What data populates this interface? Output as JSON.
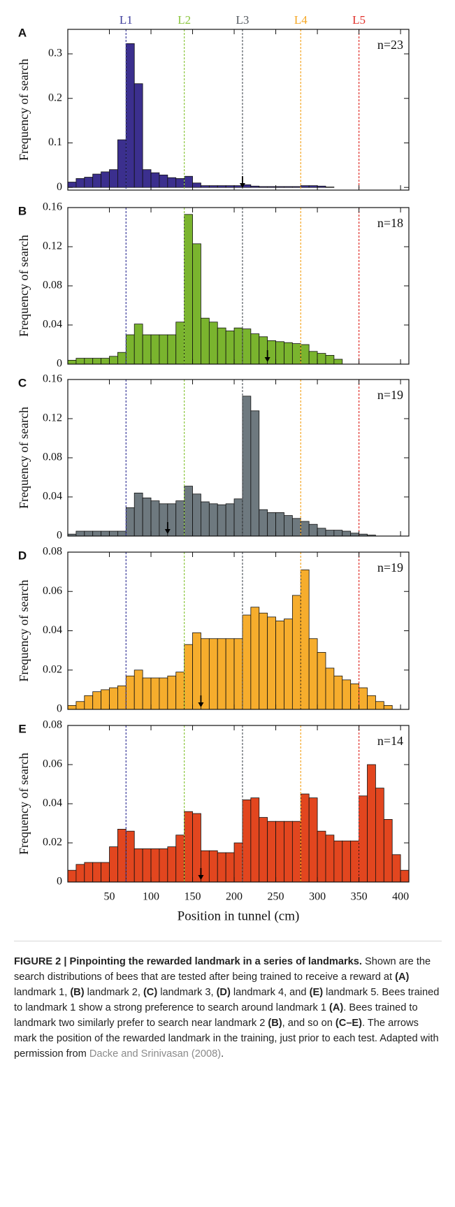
{
  "chart_data": [
    {
      "type": "histogram",
      "panel": "A",
      "n_label": "n=23",
      "color": "#3b2f8e",
      "ylabel": "Frequency of search",
      "bins": [
        0,
        10,
        20,
        30,
        40,
        50,
        60,
        70,
        80,
        90,
        100,
        110,
        120,
        130,
        140,
        150,
        160,
        170,
        180,
        190,
        200,
        210,
        220,
        230,
        240,
        250,
        260,
        270,
        280,
        290,
        300,
        310,
        320,
        330,
        340,
        350,
        360,
        370,
        380,
        390,
        400,
        410
      ],
      "values": [
        0.012,
        0.02,
        0.023,
        0.03,
        0.035,
        0.04,
        0.107,
        0.323,
        0.233,
        0.04,
        0.033,
        0.028,
        0.022,
        0.02,
        0.025,
        0.01,
        0.004,
        0.004,
        0.004,
        0.004,
        0.004,
        0.006,
        0.003,
        0.002,
        0.002,
        0.002,
        0.002,
        0.002,
        0.004,
        0.004,
        0.003,
        0.001,
        0,
        0,
        0,
        0,
        0,
        0,
        0,
        0,
        0
      ],
      "xlim": [
        0,
        410
      ],
      "ylim": [
        -0.006,
        0.355
      ],
      "yticks": [
        0,
        0.1,
        0.2,
        0.3
      ],
      "arrow": 210,
      "landmarks": [
        {
          "label": "L1",
          "x": 70,
          "color": "#3d3d9c"
        },
        {
          "label": "L2",
          "x": 140,
          "color": "#8cc63f"
        },
        {
          "label": "L3",
          "x": 210,
          "color": "#555a60"
        },
        {
          "label": "L4",
          "x": 280,
          "color": "#f5a623"
        },
        {
          "label": "L5",
          "x": 350,
          "color": "#e0302a"
        }
      ]
    },
    {
      "type": "histogram",
      "panel": "B",
      "n_label": "n=18",
      "color": "#7ab42e",
      "ylabel": "Frequency of search",
      "bins": [
        0,
        10,
        20,
        30,
        40,
        50,
        60,
        70,
        80,
        90,
        100,
        110,
        120,
        130,
        140,
        150,
        160,
        170,
        180,
        190,
        200,
        210,
        220,
        230,
        240,
        250,
        260,
        270,
        280,
        290,
        300,
        310,
        320,
        330,
        340,
        350,
        360,
        370,
        380,
        390,
        400,
        410
      ],
      "values": [
        0.004,
        0.006,
        0.006,
        0.006,
        0.006,
        0.008,
        0.012,
        0.03,
        0.041,
        0.03,
        0.03,
        0.03,
        0.03,
        0.043,
        0.153,
        0.123,
        0.047,
        0.043,
        0.037,
        0.034,
        0.037,
        0.036,
        0.031,
        0.028,
        0.024,
        0.023,
        0.022,
        0.021,
        0.02,
        0.013,
        0.011,
        0.009,
        0.005,
        0,
        0,
        0,
        0,
        0,
        0,
        0,
        0
      ],
      "xlim": [
        0,
        410
      ],
      "ylim": [
        0,
        0.16
      ],
      "yticks": [
        0,
        0.04,
        0.08,
        0.12,
        0.16
      ],
      "arrow": 240
    },
    {
      "type": "histogram",
      "panel": "C",
      "n_label": "n=19",
      "color": "#6e797f",
      "ylabel": "Frequency of search",
      "bins": [
        0,
        10,
        20,
        30,
        40,
        50,
        60,
        70,
        80,
        90,
        100,
        110,
        120,
        130,
        140,
        150,
        160,
        170,
        180,
        190,
        200,
        210,
        220,
        230,
        240,
        250,
        260,
        270,
        280,
        290,
        300,
        310,
        320,
        330,
        340,
        350,
        360,
        370,
        380,
        390,
        400,
        410
      ],
      "values": [
        0.002,
        0.005,
        0.005,
        0.005,
        0.005,
        0.005,
        0.005,
        0.029,
        0.044,
        0.039,
        0.036,
        0.033,
        0.033,
        0.036,
        0.051,
        0.043,
        0.035,
        0.033,
        0.032,
        0.033,
        0.038,
        0.143,
        0.128,
        0.027,
        0.024,
        0.024,
        0.021,
        0.018,
        0.015,
        0.012,
        0.008,
        0.006,
        0.006,
        0.005,
        0.003,
        0.002,
        0.001,
        0,
        0,
        0,
        0
      ],
      "xlim": [
        0,
        410
      ],
      "ylim": [
        0,
        0.16
      ],
      "yticks": [
        0,
        0.04,
        0.08,
        0.12,
        0.16
      ],
      "arrow": 120
    },
    {
      "type": "histogram",
      "panel": "D",
      "n_label": "n=19",
      "color": "#f6ad2d",
      "ylabel": "Frequency of search",
      "bins": [
        0,
        10,
        20,
        30,
        40,
        50,
        60,
        70,
        80,
        90,
        100,
        110,
        120,
        130,
        140,
        150,
        160,
        170,
        180,
        190,
        200,
        210,
        220,
        230,
        240,
        250,
        260,
        270,
        280,
        290,
        300,
        310,
        320,
        330,
        340,
        350,
        360,
        370,
        380,
        390,
        400,
        410
      ],
      "values": [
        0.002,
        0.004,
        0.007,
        0.009,
        0.01,
        0.011,
        0.012,
        0.017,
        0.02,
        0.016,
        0.016,
        0.016,
        0.017,
        0.019,
        0.033,
        0.039,
        0.036,
        0.036,
        0.036,
        0.036,
        0.036,
        0.048,
        0.052,
        0.049,
        0.047,
        0.045,
        0.046,
        0.058,
        0.071,
        0.036,
        0.029,
        0.021,
        0.017,
        0.015,
        0.013,
        0.011,
        0.007,
        0.004,
        0.002,
        0,
        0
      ],
      "xlim": [
        0,
        410
      ],
      "ylim": [
        0,
        0.08
      ],
      "yticks": [
        0,
        0.02,
        0.04,
        0.06,
        0.08
      ],
      "arrow": 160
    },
    {
      "type": "histogram",
      "panel": "E",
      "n_label": "n=14",
      "color": "#e2461f",
      "ylabel": "Frequency of search",
      "xlabel": "Position in tunnel (cm)",
      "bins": [
        0,
        10,
        20,
        30,
        40,
        50,
        60,
        70,
        80,
        90,
        100,
        110,
        120,
        130,
        140,
        150,
        160,
        170,
        180,
        190,
        200,
        210,
        220,
        230,
        240,
        250,
        260,
        270,
        280,
        290,
        300,
        310,
        320,
        330,
        340,
        350,
        360,
        370,
        380,
        390,
        400,
        410
      ],
      "values": [
        0.006,
        0.009,
        0.01,
        0.01,
        0.01,
        0.018,
        0.027,
        0.026,
        0.017,
        0.017,
        0.017,
        0.017,
        0.018,
        0.024,
        0.036,
        0.035,
        0.016,
        0.016,
        0.015,
        0.015,
        0.02,
        0.042,
        0.043,
        0.033,
        0.031,
        0.031,
        0.031,
        0.031,
        0.045,
        0.043,
        0.026,
        0.024,
        0.021,
        0.021,
        0.021,
        0.044,
        0.06,
        0.048,
        0.032,
        0.014,
        0.006
      ],
      "xlim": [
        0,
        410
      ],
      "ylim": [
        0,
        0.08
      ],
      "yticks": [
        0,
        0.02,
        0.04,
        0.06,
        0.08
      ],
      "arrow": 160,
      "xticks": [
        50,
        100,
        150,
        200,
        250,
        300,
        350,
        400
      ]
    }
  ],
  "caption": {
    "runs": [
      {
        "text": "FIGURE 2 | Pinpointing the rewarded landmark in a series of landmarks.",
        "style": "bold"
      },
      {
        "text": " Shown are the search distributions of bees that are tested after being trained to receive a reward at "
      },
      {
        "text": "(A)",
        "style": "bold"
      },
      {
        "text": " landmark 1, "
      },
      {
        "text": "(B)",
        "style": "bold"
      },
      {
        "text": " landmark 2, "
      },
      {
        "text": "(C)",
        "style": "bold"
      },
      {
        "text": " landmark 3, "
      },
      {
        "text": "(D)",
        "style": "bold"
      },
      {
        "text": " landmark 4, and "
      },
      {
        "text": "(E)",
        "style": "bold"
      },
      {
        "text": " landmark 5. Bees trained to landmark 1 show a strong preference to search around landmark 1 "
      },
      {
        "text": "(A)",
        "style": "bold"
      },
      {
        "text": ". Bees trained to landmark two similarly prefer to search near landmark 2 "
      },
      {
        "text": "(B)",
        "style": "bold"
      },
      {
        "text": ", and so on "
      },
      {
        "text": "(C–E)",
        "style": "bold"
      },
      {
        "text": ". The arrows mark the position of the rewarded landmark in the training, just prior to each test. Adapted with permission from "
      },
      {
        "text": "Dacke and Srinivasan (2008)",
        "style": "link"
      },
      {
        "text": "."
      }
    ]
  }
}
